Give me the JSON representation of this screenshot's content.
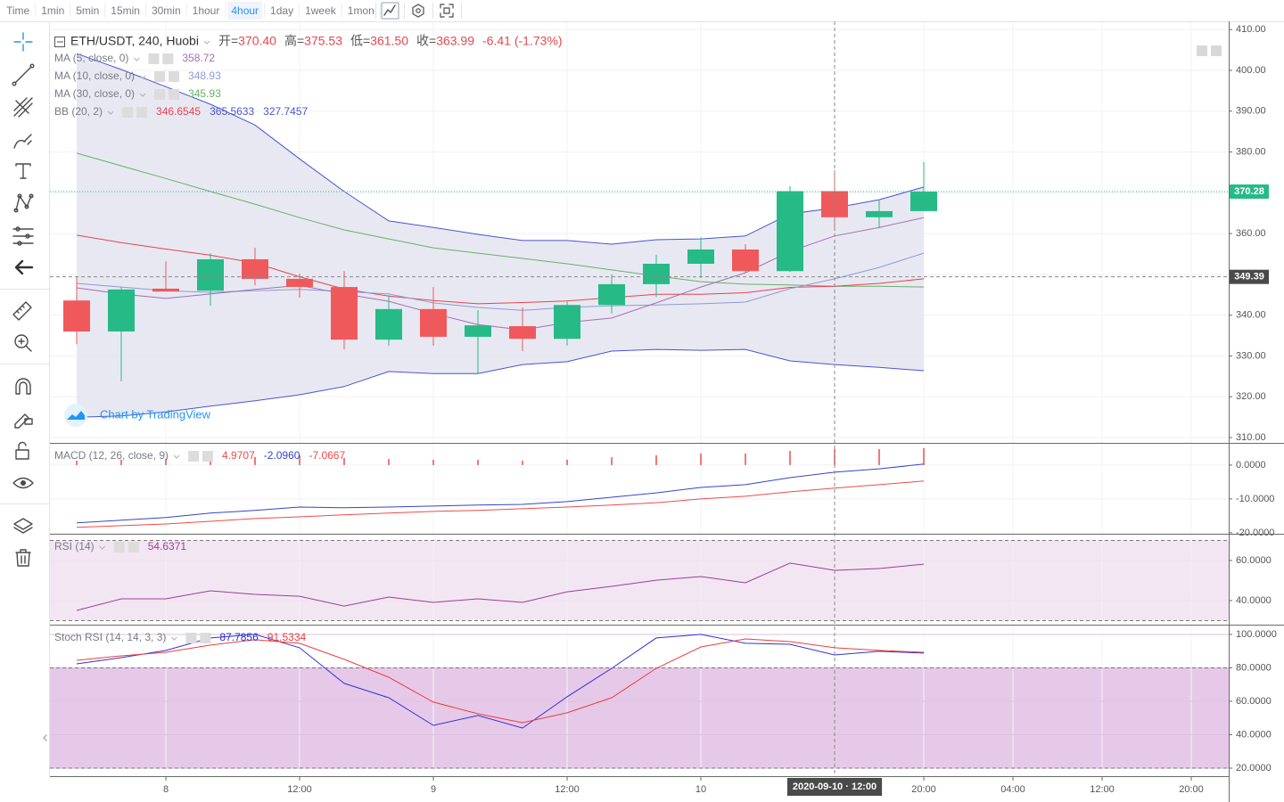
{
  "toolbar": {
    "items": [
      "Time",
      "1min",
      "5min",
      "15min",
      "30min",
      "1hour",
      "4hour",
      "1day",
      "1week",
      "1mon"
    ],
    "active": "4hour",
    "active_color": "#2196f3"
  },
  "x_axis": {
    "xlim": [
      -0.6,
      25.84
    ],
    "xticks": [
      {
        "value": 2,
        "label": "8"
      },
      {
        "value": 5,
        "label": "12:00"
      },
      {
        "value": 8,
        "label": "9"
      },
      {
        "value": 11,
        "label": "12:00"
      },
      {
        "value": 14,
        "label": "10"
      },
      {
        "value": 19,
        "label": "20:00"
      },
      {
        "value": 21,
        "label": "04:00"
      },
      {
        "value": 23,
        "label": "12:00"
      },
      {
        "value": 25,
        "label": "20:00"
      }
    ],
    "crosshair": {
      "value": 17,
      "label": "2020-09-10 · 12:00"
    }
  },
  "chart_data": [
    {
      "type": "candlestick",
      "title": "ETH/USDT, 240, Huobi",
      "ohlc_labels": [
        "开=",
        "高=",
        "低=",
        "收="
      ],
      "ohlc_values": [
        "370.40",
        "375.53",
        "361.50",
        "363.99"
      ],
      "change": "-6.41 (-1.73%)",
      "readout_color": "#e5484d",
      "watermark": "Chart by TradingView",
      "ylim": [
        308.7,
        412.0
      ],
      "yticks": [
        {
          "value": 310,
          "label": "310.00"
        },
        {
          "value": 320,
          "label": "320.00"
        },
        {
          "value": 330,
          "label": "330.00"
        },
        {
          "value": 340,
          "label": "340.00"
        },
        {
          "value": 350,
          "label": "350.00"
        },
        {
          "value": 360,
          "label": "360.00"
        },
        {
          "value": 370,
          "label": "370.00"
        },
        {
          "value": 380,
          "label": "380.00"
        },
        {
          "value": 390,
          "label": "390.00"
        },
        {
          "value": 400,
          "label": "400.00"
        },
        {
          "value": 410,
          "label": "410.00"
        }
      ],
      "grid": true,
      "grid_color": "#f1f1f4",
      "up_color": "#26ba87",
      "down_color": "#f0595c",
      "open": [
        343.6,
        336.0,
        346.5,
        346.0,
        353.7,
        348.9,
        346.9,
        334.0,
        341.5,
        334.7,
        337.3,
        334.2,
        342.5,
        347.6,
        352.6,
        356.1,
        350.8,
        370.4,
        364.0,
        365.5
      ],
      "high": [
        349.3,
        346.9,
        353.2,
        355.2,
        356.5,
        350.2,
        350.8,
        344.9,
        346.9,
        341.2,
        341.9,
        343.4,
        350.0,
        354.8,
        359.1,
        357.4,
        371.6,
        375.53,
        368.1,
        377.5
      ],
      "low": [
        332.9,
        323.8,
        345.8,
        342.3,
        347.3,
        344.3,
        331.6,
        332.5,
        332.5,
        325.7,
        331.2,
        332.5,
        340.4,
        344.5,
        349.1,
        350.4,
        350.6,
        361.5,
        361.3,
        365.5
      ],
      "close": [
        336.0,
        346.3,
        345.8,
        353.7,
        348.9,
        346.9,
        334.0,
        341.5,
        334.7,
        337.5,
        334.2,
        342.5,
        347.6,
        352.6,
        356.1,
        350.8,
        370.4,
        363.99,
        365.5,
        370.28
      ],
      "last_price_color": "#26ba87",
      "crosshair": 349.39,
      "series": [
        {
          "name": "MA (5, close, 0)",
          "color": "#a36fb4",
          "readout": "358.72",
          "values": [
            346.7,
            345.2,
            344.1,
            345.2,
            346.3,
            347.3,
            345.2,
            343.4,
            340.4,
            337.7,
            336.4,
            338.2,
            339.3,
            343.0,
            346.9,
            350.4,
            355.6,
            359.4,
            361.5,
            363.9
          ]
        },
        {
          "name": "MA (10, close, 0)",
          "color": "#8e9ad6",
          "readout": "348.93",
          "values": [
            347.8,
            346.9,
            346.0,
            345.6,
            346.0,
            346.3,
            345.8,
            345.2,
            343.0,
            341.9,
            341.2,
            341.9,
            342.3,
            342.5,
            342.8,
            343.2,
            346.5,
            348.9,
            351.7,
            355.2
          ]
        },
        {
          "name": "MA (30, close, 0)",
          "color": "#66b266",
          "readout": "345.93",
          "values": [
            379.7,
            376.6,
            373.5,
            370.3,
            367.2,
            363.9,
            360.9,
            358.7,
            356.5,
            355.2,
            353.9,
            352.6,
            351.1,
            349.6,
            348.2,
            347.6,
            347.4,
            347.1,
            347.1,
            346.9
          ]
        }
      ],
      "bands": {
        "name": "BB (20, 2)",
        "basis_color": "#e8434e",
        "band_color": "#4a55d1",
        "fill": "#e4e4f0",
        "readout": [
          "346.6545",
          "365.5633",
          "327.7457"
        ],
        "readout_colors": [
          "#e8434e",
          "#4a55d1",
          "#4a55d1"
        ],
        "basis": [
          359.6,
          357.8,
          356.2,
          354.7,
          352.8,
          349.4,
          346.4,
          344.7,
          343.6,
          342.8,
          343.1,
          343.5,
          344.3,
          345.1,
          345.1,
          345.5,
          346.8,
          347.1,
          347.8,
          348.9
        ],
        "upper": [
          404.1,
          400.2,
          396.0,
          391.7,
          386.6,
          378.3,
          370.3,
          363.1,
          361.5,
          359.8,
          358.3,
          358.3,
          357.4,
          358.5,
          358.7,
          359.4,
          364.8,
          366.3,
          368.3,
          371.4
        ],
        "lower": [
          315.0,
          315.3,
          316.3,
          317.7,
          319.0,
          320.5,
          322.5,
          326.2,
          325.7,
          325.7,
          327.9,
          328.6,
          331.2,
          331.6,
          331.4,
          331.6,
          328.8,
          327.9,
          327.2,
          326.4
        ]
      }
    },
    {
      "type": "macd",
      "title": "MACD (12, 26, close, 9)",
      "ylim": [
        -20.3,
        6.3
      ],
      "yticks": [
        {
          "value": 0,
          "label": "0.0000"
        },
        {
          "value": -10,
          "label": "-10.0000"
        },
        {
          "value": -20,
          "label": "-20.0000"
        }
      ],
      "grid": true,
      "grid_color": "#f1f1f4",
      "series": [
        {
          "kind": "histogram",
          "color": "#f04a4a",
          "readout": "4.9707",
          "values": [
            1.3,
            1.6,
            1.9,
            2.4,
            2.4,
            2.9,
            2.1,
            1.8,
            1.6,
            1.6,
            1.3,
            1.6,
            2.3,
            2.9,
            3.4,
            3.4,
            4.2,
            4.7,
            4.7,
            5.0
          ]
        },
        {
          "kind": "line",
          "color": "#3545c8",
          "readout": "-2.0960",
          "values": [
            -17.1,
            -16.3,
            -15.5,
            -14.2,
            -13.4,
            -12.4,
            -12.6,
            -12.4,
            -12.1,
            -11.8,
            -11.6,
            -10.8,
            -9.5,
            -8.2,
            -6.6,
            -5.8,
            -3.7,
            -2.1,
            -1.1,
            0.3
          ]
        },
        {
          "kind": "line",
          "color": "#f04a4a",
          "readout": "-7.0667",
          "values": [
            -18.4,
            -17.9,
            -17.4,
            -16.6,
            -15.8,
            -15.3,
            -14.7,
            -14.2,
            -13.7,
            -13.4,
            -12.9,
            -12.4,
            -11.8,
            -11.1,
            -10.0,
            -9.2,
            -7.9,
            -6.8,
            -5.8,
            -4.7
          ]
        }
      ]
    },
    {
      "type": "oscillator",
      "title": "RSI (14)",
      "ylim": [
        28.0,
        72.9
      ],
      "yticks": [
        {
          "value": 60,
          "label": "60.0000"
        },
        {
          "value": 40,
          "label": "40.0000"
        }
      ],
      "grid": true,
      "grid_color": "#ece2ee",
      "bands": [
        70,
        30
      ],
      "band_fill": "#f3e6f3",
      "series": [
        {
          "kind": "line",
          "color": "#9c3d9c",
          "readout": "54.6371",
          "values": [
            35.1,
            40.9,
            40.9,
            44.9,
            43.1,
            42.2,
            37.3,
            41.8,
            39.1,
            40.9,
            39.1,
            44.4,
            47.1,
            50.2,
            52.0,
            48.9,
            58.7,
            55.1,
            56.0,
            58.2
          ]
        }
      ]
    },
    {
      "type": "oscillator",
      "title": "Stoch RSI (14, 14, 3, 3)",
      "ylim": [
        15.2,
        105.3
      ],
      "yticks": [
        {
          "value": 100,
          "label": "100.0000"
        },
        {
          "value": 80,
          "label": "80.0000"
        },
        {
          "value": 60,
          "label": "60.0000"
        },
        {
          "value": 40,
          "label": "40.0000"
        },
        {
          "value": 20,
          "label": "20.0000"
        }
      ],
      "grid": true,
      "grid_color": "#dcc2df",
      "bands": [
        80,
        20
      ],
      "band_fill": "#e6c9e8",
      "series": [
        {
          "kind": "line",
          "color": "#3131d6",
          "readout": "87.7856",
          "values": [
            82.4,
            86.1,
            90.4,
            97.9,
            100,
            92.0,
            70.7,
            62.1,
            45.6,
            51.5,
            44.0,
            62.7,
            79.7,
            97.9,
            100,
            94.7,
            94.1,
            87.7,
            89.9,
            88.8
          ]
        },
        {
          "kind": "line",
          "color": "#f03c3c",
          "readout": "91.5334",
          "values": [
            84.5,
            87.2,
            89.3,
            93.6,
            96.8,
            94.7,
            85.1,
            74.4,
            59.5,
            52.5,
            47.2,
            53.1,
            62.1,
            79.7,
            92.5,
            97.3,
            95.7,
            92.0,
            90.4,
            89.3
          ]
        }
      ]
    }
  ]
}
